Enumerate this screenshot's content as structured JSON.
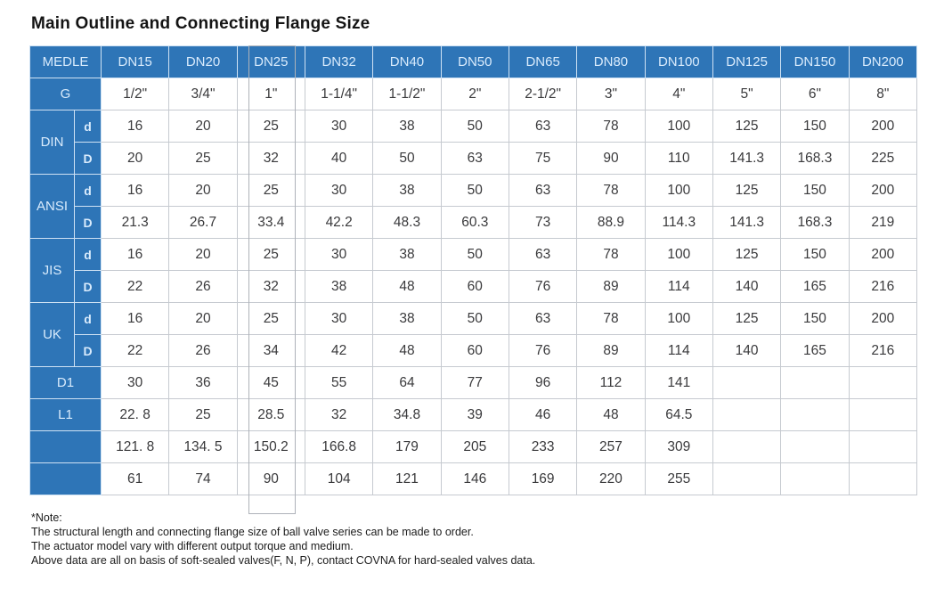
{
  "title": "Main Outline and Connecting Flange Size",
  "colors": {
    "header_blue": "#2e75b7",
    "header_text": "#d9ebfc",
    "grid_line": "#c6cad0",
    "body_text": "#3a3a3c"
  },
  "selection": {
    "column": "DN25"
  },
  "table": {
    "header": [
      "MEDLE",
      "DN15",
      "DN20",
      "DN25",
      "DN32",
      "DN40",
      "DN50",
      "DN65",
      "DN80",
      "DN100",
      "DN125",
      "DN150",
      "DN200"
    ],
    "rows": [
      {
        "type": "single",
        "name": "g",
        "label": "G",
        "values": [
          "1/2\"",
          "3/4\"",
          "1\"",
          "1-1/4\"",
          "1-1/2\"",
          "2\"",
          "2-1/2\"",
          "3\"",
          "4\"",
          "5\"",
          "6\"",
          "8\""
        ]
      },
      {
        "type": "group",
        "name": "din",
        "label": "DIN",
        "subrows": [
          {
            "sub": "d",
            "values": [
              "16",
              "20",
              "25",
              "30",
              "38",
              "50",
              "63",
              "78",
              "100",
              "125",
              "150",
              "200"
            ]
          },
          {
            "sub": "D",
            "values": [
              "20",
              "25",
              "32",
              "40",
              "50",
              "63",
              "75",
              "90",
              "110",
              "141.3",
              "168.3",
              "225"
            ]
          }
        ]
      },
      {
        "type": "group",
        "name": "ansi",
        "label": "ANSI",
        "subrows": [
          {
            "sub": "d",
            "values": [
              "16",
              "20",
              "25",
              "30",
              "38",
              "50",
              "63",
              "78",
              "100",
              "125",
              "150",
              "200"
            ]
          },
          {
            "sub": "D",
            "values": [
              "21.3",
              "26.7",
              "33.4",
              "42.2",
              "48.3",
              "60.3",
              "73",
              "88.9",
              "114.3",
              "141.3",
              "168.3",
              "219"
            ]
          }
        ]
      },
      {
        "type": "group",
        "name": "jis",
        "label": "JIS",
        "subrows": [
          {
            "sub": "d",
            "values": [
              "16",
              "20",
              "25",
              "30",
              "38",
              "50",
              "63",
              "78",
              "100",
              "125",
              "150",
              "200"
            ]
          },
          {
            "sub": "D",
            "values": [
              "22",
              "26",
              "32",
              "38",
              "48",
              "60",
              "76",
              "89",
              "114",
              "140",
              "165",
              "216"
            ]
          }
        ]
      },
      {
        "type": "group",
        "name": "uk",
        "label": "UK",
        "subrows": [
          {
            "sub": "d",
            "values": [
              "16",
              "20",
              "25",
              "30",
              "38",
              "50",
              "63",
              "78",
              "100",
              "125",
              "150",
              "200"
            ]
          },
          {
            "sub": "D",
            "values": [
              "22",
              "26",
              "34",
              "42",
              "48",
              "60",
              "76",
              "89",
              "114",
              "140",
              "165",
              "216"
            ]
          }
        ]
      },
      {
        "type": "single",
        "name": "d1",
        "label": "D1",
        "values": [
          "30",
          "36",
          "45",
          "55",
          "64",
          "77",
          "96",
          "112",
          "141",
          "",
          "",
          ""
        ]
      },
      {
        "type": "single",
        "name": "l1",
        "label": "L1",
        "values": [
          "22. 8",
          "25",
          "28.5",
          "32",
          "34.8",
          "39",
          "46",
          "48",
          "64.5",
          "",
          "",
          ""
        ]
      },
      {
        "type": "single",
        "name": "blank-1",
        "label": "",
        "values": [
          "121. 8",
          "134. 5",
          "150.2",
          "166.8",
          "179",
          "205",
          "233",
          "257",
          "309",
          "",
          "",
          ""
        ]
      },
      {
        "type": "single",
        "name": "blank-2",
        "label": "",
        "values": [
          "61",
          "74",
          "90",
          "104",
          "121",
          "146",
          "169",
          "220",
          "255",
          "",
          "",
          ""
        ]
      }
    ]
  },
  "notes": {
    "heading": "*Note:",
    "lines": [
      "The structural length and connecting flange size of ball valve series can be made to order.",
      "The actuator model vary with different output torque and medium.",
      "Above data are all on basis of soft-sealed valves(F, N, P), contact COVNA for hard-sealed valves data."
    ]
  }
}
